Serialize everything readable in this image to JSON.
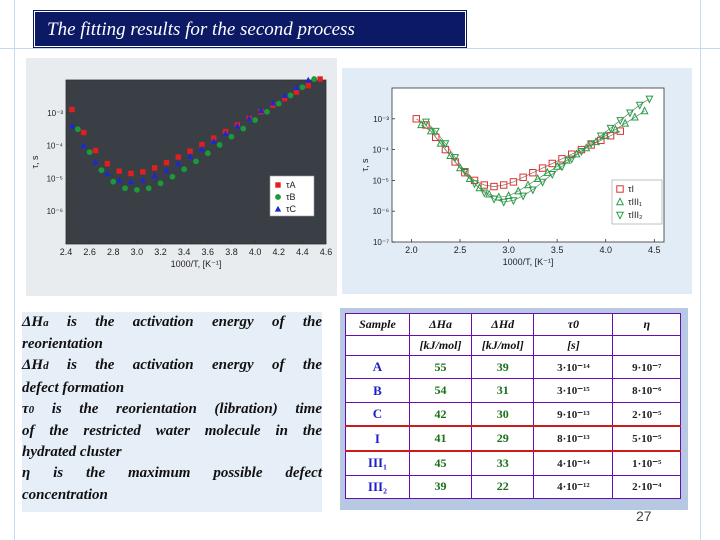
{
  "title": "The fitting results  for the second process",
  "chart_data": [
    {
      "type": "scatter",
      "title": "",
      "xlabel": "1000/T, [K⁻¹]",
      "ylabel": "τ, s",
      "xlim": [
        2.4,
        4.6
      ],
      "ylog": true,
      "ylim_exp": [
        -7,
        -2
      ],
      "xticks": [
        "2.4",
        "2.6",
        "2.8",
        "3.0",
        "3.2",
        "3.4",
        "3.6",
        "3.8",
        "4.0",
        "4.2",
        "4.4",
        "4.6"
      ],
      "yticks": [
        "10⁻³",
        "10⁻⁴",
        "10⁻⁵",
        "10⁻⁶"
      ],
      "legend_position": "right",
      "series": [
        {
          "name": "τA",
          "color": "#e02020",
          "marker": "square",
          "x": [
            2.45,
            2.55,
            2.65,
            2.75,
            2.85,
            2.95,
            3.05,
            3.15,
            3.25,
            3.35,
            3.45,
            3.55,
            3.65,
            3.75,
            3.85,
            3.95,
            4.05,
            4.15,
            4.25,
            4.35,
            4.45,
            4.55
          ],
          "y": [
            -2.9,
            -3.6,
            -4.15,
            -4.55,
            -4.78,
            -4.85,
            -4.8,
            -4.68,
            -4.52,
            -4.35,
            -4.17,
            -3.97,
            -3.77,
            -3.57,
            -3.37,
            -3.17,
            -2.97,
            -2.77,
            -2.57,
            -2.37,
            -2.17,
            -1.97
          ]
        },
        {
          "name": "τB",
          "color": "#1a9a3a",
          "marker": "circle",
          "x": [
            2.5,
            2.6,
            2.7,
            2.8,
            2.9,
            3.0,
            3.1,
            3.2,
            3.3,
            3.4,
            3.5,
            3.6,
            3.7,
            3.8,
            3.9,
            4.0,
            4.1,
            4.2,
            4.3,
            4.4,
            4.5
          ],
          "y": [
            -3.5,
            -4.2,
            -4.75,
            -5.1,
            -5.3,
            -5.35,
            -5.3,
            -5.15,
            -4.95,
            -4.72,
            -4.48,
            -4.23,
            -3.98,
            -3.73,
            -3.48,
            -3.22,
            -2.97,
            -2.72,
            -2.47,
            -2.22,
            -1.97
          ]
        },
        {
          "name": "τC",
          "color": "#1a2ad0",
          "marker": "triangle",
          "x": [
            2.45,
            2.55,
            2.65,
            2.75,
            2.85,
            2.95,
            3.05,
            3.15,
            3.25,
            3.35,
            3.45,
            3.55,
            3.65,
            3.75,
            3.85,
            3.95,
            4.05,
            4.15,
            4.25,
            4.35,
            4.45,
            4.55
          ],
          "y": [
            -3.4,
            -4.0,
            -4.5,
            -4.85,
            -5.05,
            -5.1,
            -5.05,
            -4.92,
            -4.75,
            -4.55,
            -4.33,
            -4.1,
            -3.87,
            -3.63,
            -3.4,
            -3.17,
            -2.93,
            -2.7,
            -2.47,
            -2.23,
            -2.0,
            -1.77
          ]
        }
      ]
    },
    {
      "type": "scatter",
      "title": "",
      "xlabel": "1000/T, [K⁻¹]",
      "ylabel": "τ, s",
      "xlim": [
        1.8,
        4.6
      ],
      "ylog": true,
      "ylim_exp": [
        -7,
        -2
      ],
      "xticks": [
        "2.0",
        "2.5",
        "3.0",
        "3.5",
        "4.0",
        "4.5"
      ],
      "yticks": [
        "10⁻³",
        "10⁻⁴",
        "10⁻⁵",
        "10⁻⁶",
        "10⁻⁷"
      ],
      "legend_position": "bottom-right",
      "series": [
        {
          "name": "τI",
          "color": "#e03030",
          "marker": "open-square",
          "x": [
            2.05,
            2.15,
            2.25,
            2.35,
            2.45,
            2.55,
            2.65,
            2.75,
            2.85,
            2.95,
            3.05,
            3.15,
            3.25,
            3.35,
            3.45,
            3.55,
            3.65,
            3.75,
            3.85,
            3.95,
            4.05,
            4.15
          ],
          "y": [
            -3.0,
            -3.2,
            -3.6,
            -4.0,
            -4.4,
            -4.75,
            -5.0,
            -5.15,
            -5.2,
            -5.15,
            -5.05,
            -4.9,
            -4.75,
            -4.6,
            -4.45,
            -4.3,
            -4.15,
            -4.0,
            -3.85,
            -3.7,
            -3.55,
            -3.4
          ]
        },
        {
          "name": "τIII₁",
          "color": "#20a040",
          "marker": "open-triangle-up",
          "x": [
            2.1,
            2.2,
            2.3,
            2.4,
            2.5,
            2.6,
            2.7,
            2.8,
            2.9,
            3.0,
            3.1,
            3.2,
            3.3,
            3.4,
            3.5,
            3.6,
            3.7,
            3.8,
            3.9,
            4.0,
            4.1,
            4.2,
            4.3,
            4.4
          ],
          "y": [
            -3.2,
            -3.4,
            -3.8,
            -4.2,
            -4.6,
            -4.95,
            -5.25,
            -5.45,
            -5.55,
            -5.5,
            -5.35,
            -5.15,
            -4.95,
            -4.75,
            -4.55,
            -4.35,
            -4.15,
            -3.95,
            -3.75,
            -3.55,
            -3.35,
            -3.15,
            -2.95,
            -2.75
          ]
        },
        {
          "name": "τIII₂",
          "color": "#20a040",
          "marker": "open-triangle-down",
          "x": [
            2.15,
            2.25,
            2.35,
            2.45,
            2.55,
            2.65,
            2.75,
            2.85,
            2.95,
            3.05,
            3.15,
            3.25,
            3.35,
            3.45,
            3.55,
            3.65,
            3.75,
            3.85,
            3.95,
            4.05,
            4.15,
            4.25,
            4.35,
            4.45
          ],
          "y": [
            -3.1,
            -3.4,
            -3.8,
            -4.25,
            -4.7,
            -5.1,
            -5.4,
            -5.6,
            -5.7,
            -5.65,
            -5.5,
            -5.3,
            -5.05,
            -4.8,
            -4.55,
            -4.3,
            -4.05,
            -3.8,
            -3.55,
            -3.3,
            -3.05,
            -2.8,
            -2.55,
            -2.35
          ]
        }
      ]
    }
  ],
  "definitions": [
    {
      "symbol": "ΔH",
      "sub": "a",
      "text": " is the activation energy of the",
      "rest": "reorientation"
    },
    {
      "symbol": "ΔH",
      "sub": "d",
      "text": " is the activation energy of the",
      "rest": "defect formation"
    },
    {
      "symbol": "τ",
      "sub": "0",
      "text": " is the reorientation (libration) time",
      "rest": "of the restricted water molecule in the"
    },
    {
      "symbol": "",
      "sub": "",
      "text": "hydrated cluster",
      "rest": ""
    },
    {
      "symbol": "η",
      "sub": "",
      "text": " is the maximum possible defect",
      "rest": "concentration"
    }
  ],
  "table": {
    "headers": [
      "Sample",
      "ΔHa",
      "ΔHd",
      "τ0",
      "η"
    ],
    "units": [
      "",
      "[kJ/mol]",
      "[kJ/mol]",
      "[s]",
      ""
    ],
    "rows": [
      {
        "sample": "A",
        "dHa": "55",
        "dHd": "39",
        "tau0": "3·10⁻¹⁴",
        "eta": "9·10⁻⁷"
      },
      {
        "sample": "B",
        "dHa": "54",
        "dHd": "31",
        "tau0": "3·10⁻¹⁵",
        "eta": "8·10⁻⁶"
      },
      {
        "sample": "C",
        "dHa": "42",
        "dHd": "30",
        "tau0": "9·10⁻¹³",
        "eta": "2·10⁻⁵"
      },
      {
        "sample": "I",
        "dHa": "41",
        "dHd": "29",
        "tau0": "8·10⁻¹³",
        "eta": "5·10⁻⁵"
      },
      {
        "sample": "III₁",
        "dHa": "45",
        "dHd": "33",
        "tau0": "4·10⁻¹⁴",
        "eta": "1·10⁻⁵"
      },
      {
        "sample": "III₂",
        "dHa": "39",
        "dHd": "22",
        "tau0": "4·10⁻¹²",
        "eta": "2·10⁻⁴"
      }
    ]
  },
  "page_number": "27"
}
